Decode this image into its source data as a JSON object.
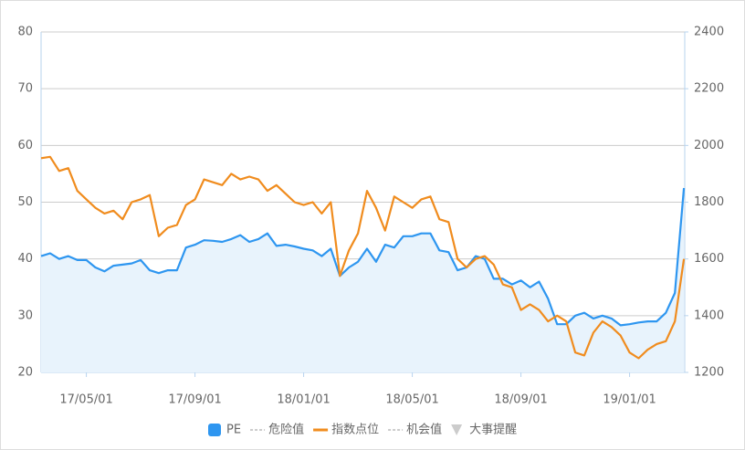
{
  "chart_data": {
    "type": "line",
    "categories": [
      null,
      null,
      null,
      null,
      null,
      "17/05/01",
      null,
      null,
      null,
      null,
      null,
      null,
      null,
      null,
      null,
      null,
      null,
      "17/09/01",
      null,
      null,
      null,
      null,
      null,
      null,
      null,
      null,
      null,
      null,
      null,
      "18/01/01",
      null,
      null,
      null,
      null,
      null,
      null,
      null,
      null,
      null,
      null,
      null,
      "18/05/01",
      null,
      null,
      null,
      null,
      null,
      null,
      null,
      null,
      null,
      null,
      null,
      "18/09/01",
      null,
      null,
      null,
      null,
      null,
      null,
      null,
      null,
      null,
      null,
      null,
      "19/01/01",
      null,
      null,
      null,
      null,
      null,
      null
    ],
    "series": [
      {
        "name": "PE",
        "color": "#2e96f0",
        "fill": "#e8f3fc",
        "axis": "y",
        "symbol": "square",
        "values": [
          40.5,
          41,
          40,
          40.5,
          39.8,
          39.8,
          38.5,
          37.8,
          38.8,
          39,
          39.2,
          39.8,
          38,
          37.5,
          38,
          38,
          42,
          42.5,
          43.3,
          43.2,
          43,
          43.5,
          44.2,
          43,
          43.5,
          44.5,
          42.3,
          42.5,
          42.2,
          41.8,
          41.5,
          40.5,
          41.8,
          37,
          38.5,
          39.5,
          41.8,
          39.5,
          42.5,
          42,
          44,
          44,
          44.5,
          44.5,
          41.5,
          41.2,
          38,
          38.5,
          40.5,
          40,
          36.5,
          36.5,
          35.5,
          36.2,
          35,
          36,
          33,
          28.5,
          28.5,
          30,
          30.5,
          29.5,
          30,
          29.5,
          28.3,
          28.5,
          28.8,
          29,
          29,
          30.5,
          34,
          52.5
        ]
      },
      {
        "name": "指数点位",
        "color": "#f08c1e",
        "axis": "y2",
        "symbol": "line",
        "values": [
          1955,
          1960,
          1910,
          1920,
          1840,
          1810,
          1780,
          1760,
          1770,
          1740,
          1800,
          1810,
          1825,
          1680,
          1710,
          1720,
          1790,
          1810,
          1880,
          1870,
          1860,
          1900,
          1880,
          1890,
          1880,
          1840,
          1860,
          1830,
          1800,
          1790,
          1800,
          1760,
          1800,
          1540,
          1630,
          1690,
          1840,
          1780,
          1700,
          1820,
          1800,
          1780,
          1810,
          1820,
          1740,
          1730,
          1600,
          1570,
          1600,
          1610,
          1580,
          1510,
          1500,
          1420,
          1440,
          1420,
          1380,
          1400,
          1380,
          1270,
          1260,
          1340,
          1380,
          1360,
          1330,
          1270,
          1250,
          1280,
          1300,
          1310,
          1380,
          1600
        ]
      }
    ],
    "legend_extra": [
      {
        "name": "危险值",
        "after": 0,
        "symbol": "dash"
      },
      {
        "name": "机会值",
        "after": 1,
        "symbol": "dash"
      },
      {
        "name": "大事提醒",
        "after": 1,
        "symbol": "triangle"
      }
    ],
    "ylim": [
      20,
      80
    ],
    "yticks": [
      20,
      30,
      40,
      50,
      60,
      70,
      80
    ],
    "y2lim": [
      1200,
      2400
    ],
    "y2ticks": [
      1200,
      1400,
      1600,
      1800,
      2000,
      2200,
      2400
    ],
    "grid": true
  }
}
